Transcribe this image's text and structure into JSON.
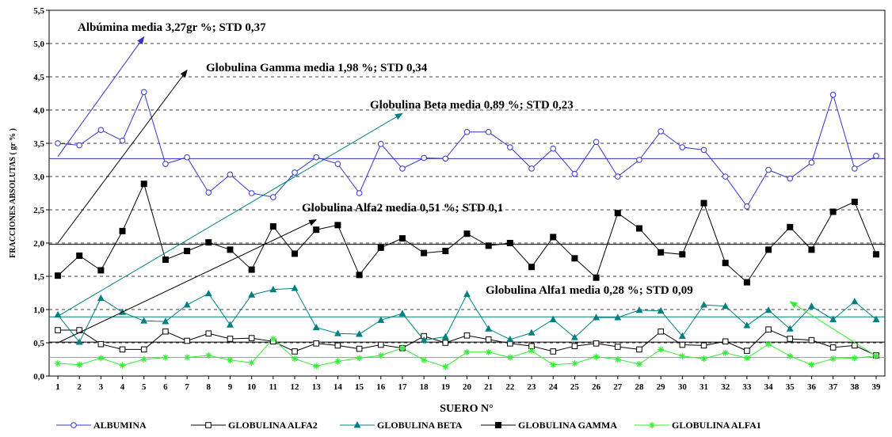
{
  "chart_data": {
    "type": "line",
    "title": "",
    "xlabel": "SUERO N°",
    "ylabel": "FRACCIONES ABSOLUTAS ( gr % )",
    "xlim": [
      1,
      39
    ],
    "ylim": [
      0,
      5.5
    ],
    "yticks": [
      "0,0",
      "0,5",
      "1,0",
      "1,5",
      "2,0",
      "2,5",
      "3,0",
      "3,5",
      "4,0",
      "4,5",
      "5,0",
      "5,5"
    ],
    "xticks": [
      "1",
      "2",
      "3",
      "4",
      "5",
      "6",
      "7",
      "8",
      "9",
      "10",
      "11",
      "12",
      "13",
      "14",
      "15",
      "16",
      "17",
      "18",
      "19",
      "20",
      "21",
      "22",
      "23",
      "24",
      "25",
      "26",
      "27",
      "28",
      "29",
      "30",
      "31",
      "32",
      "33",
      "34",
      "35",
      "36",
      "37",
      "38",
      "39"
    ],
    "grid": true,
    "legend_position": "bottom",
    "series": [
      {
        "name": "ALBUMINA",
        "color": "#3333cc",
        "marker": "circle",
        "values": [
          3.5,
          3.47,
          3.7,
          3.54,
          4.27,
          3.19,
          3.29,
          2.76,
          3.03,
          2.75,
          2.69,
          3.06,
          3.29,
          3.19,
          2.75,
          3.49,
          3.12,
          3.28,
          3.27,
          3.67,
          3.67,
          3.44,
          3.12,
          3.42,
          3.04,
          3.52,
          3.0,
          3.25,
          3.68,
          3.44,
          3.4,
          3.0,
          2.55,
          3.1,
          2.97,
          3.21,
          4.23,
          3.12,
          3.31
        ]
      },
      {
        "name": "GLOBULINA ALFA2",
        "color": "#000000",
        "marker": "square",
        "values": [
          0.69,
          0.69,
          0.48,
          0.4,
          0.4,
          0.67,
          0.53,
          0.64,
          0.56,
          0.57,
          0.52,
          0.37,
          0.49,
          0.46,
          0.41,
          0.47,
          0.42,
          0.6,
          0.5,
          0.61,
          0.55,
          0.49,
          0.45,
          0.37,
          0.45,
          0.49,
          0.44,
          0.4,
          0.67,
          0.47,
          0.46,
          0.52,
          0.38,
          0.7,
          0.56,
          0.54,
          0.43,
          0.46,
          0.31
        ]
      },
      {
        "name": "GLOBULINA BETA",
        "color": "#008080",
        "marker": "triangle",
        "values": [
          0.92,
          0.51,
          1.17,
          0.96,
          0.83,
          0.82,
          1.07,
          1.24,
          0.77,
          1.22,
          1.3,
          1.32,
          0.73,
          0.64,
          0.63,
          0.84,
          0.94,
          0.54,
          0.59,
          1.23,
          0.71,
          0.55,
          0.65,
          0.85,
          0.58,
          0.88,
          0.88,
          0.99,
          0.98,
          0.6,
          1.07,
          1.05,
          0.76,
          0.99,
          0.71,
          1.05,
          0.85,
          1.12,
          0.85
        ]
      },
      {
        "name": "GLOBULINA GAMMA",
        "color": "#000000",
        "marker": "filled-square",
        "values": [
          1.51,
          1.81,
          1.59,
          2.18,
          2.89,
          1.75,
          1.88,
          2.01,
          1.9,
          1.6,
          2.25,
          1.84,
          2.2,
          2.27,
          1.52,
          1.93,
          2.07,
          1.85,
          1.88,
          2.14,
          1.96,
          2.0,
          1.64,
          2.09,
          1.77,
          1.48,
          2.45,
          2.22,
          1.86,
          1.83,
          2.6,
          1.7,
          1.41,
          1.9,
          2.24,
          1.9,
          2.47,
          2.62,
          1.83
        ]
      },
      {
        "name": "GLOBULINA ALFA1",
        "color": "#33ee33",
        "marker": "asterisk",
        "values": [
          0.19,
          0.17,
          0.27,
          0.16,
          0.25,
          0.28,
          0.28,
          0.31,
          0.24,
          0.2,
          0.56,
          0.26,
          0.15,
          0.22,
          0.27,
          0.31,
          0.42,
          0.24,
          0.14,
          0.36,
          0.36,
          0.28,
          0.38,
          0.17,
          0.19,
          0.29,
          0.25,
          0.18,
          0.4,
          0.3,
          0.26,
          0.35,
          0.27,
          0.48,
          0.3,
          0.17,
          0.26,
          0.27,
          0.3
        ]
      }
    ],
    "mean_lines": [
      {
        "series": "ALBUMINA",
        "value": 3.27,
        "color": "#3333cc"
      },
      {
        "series": "GLOBULINA GAMMA",
        "value": 1.98,
        "color": "#000000"
      },
      {
        "series": "GLOBULINA BETA",
        "value": 0.89,
        "color": "#008080"
      },
      {
        "series": "GLOBULINA ALFA2",
        "value": 0.51,
        "color": "#000000"
      },
      {
        "series": "GLOBULINA ALFA1",
        "value": 0.28,
        "color": "#33ee33"
      }
    ],
    "annotations": [
      {
        "text": "Albúmina media 3,27gr %; STD 0,37",
        "color": "#3333cc",
        "arrow": [
          [
            1,
            3.3
          ],
          [
            5,
            5.1
          ]
        ]
      },
      {
        "text": "Globulina Gamma media 1,98 %; STD 0,34",
        "color": "#000000",
        "arrow": [
          [
            1,
            2.0
          ],
          [
            7,
            4.6
          ]
        ]
      },
      {
        "text": "Globulina Beta media 0,89 %; STD  0,23",
        "color": "#008080",
        "arrow": [
          [
            1,
            0.9
          ],
          [
            17,
            3.95
          ]
        ]
      },
      {
        "text": "Globulina Alfa2 media 0,51 %; STD 0,1",
        "color": "#000000",
        "arrow": [
          [
            1,
            0.5
          ],
          [
            13,
            2.35
          ]
        ]
      },
      {
        "text": "Globulina Alfa1 media 0,28 %; STD 0,09",
        "color": "#33ee33",
        "arrow": [
          [
            39,
            0.3
          ],
          [
            35,
            1.12
          ]
        ]
      }
    ]
  }
}
